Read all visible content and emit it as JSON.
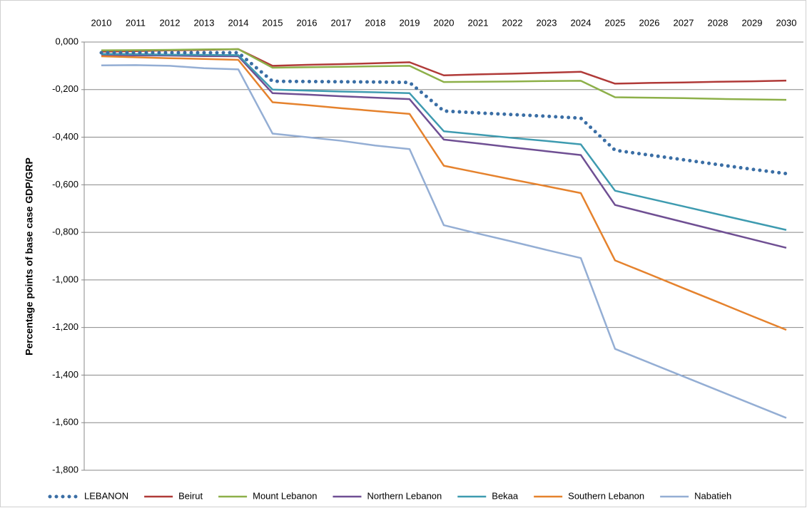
{
  "chart_data": {
    "type": "line",
    "y_label": "Percentage points of base case GDP/GRP",
    "categories": [
      "2010",
      "2011",
      "2012",
      "2013",
      "2014",
      "2015",
      "2016",
      "2017",
      "2018",
      "2019",
      "2020",
      "2021",
      "2022",
      "2023",
      "2024",
      "2025",
      "2026",
      "2027",
      "2028",
      "2029",
      "2030"
    ],
    "ylim": [
      -1.8,
      0
    ],
    "yticks": [
      {
        "value": 0,
        "label": "0,000"
      },
      {
        "value": -0.2,
        "label": "-0,200"
      },
      {
        "value": -0.4,
        "label": "-0,400"
      },
      {
        "value": -0.6,
        "label": "-0,600"
      },
      {
        "value": -0.8,
        "label": "-0,800"
      },
      {
        "value": -1.0,
        "label": "-1,000"
      },
      {
        "value": -1.2,
        "label": "-1,200"
      },
      {
        "value": -1.4,
        "label": "-1,400"
      },
      {
        "value": -1.6,
        "label": "-1,600"
      },
      {
        "value": -1.8,
        "label": "-1,800"
      }
    ],
    "grid": true,
    "legend": "bottom",
    "series": [
      {
        "name": "LEBANON",
        "color": "#3a6ea5",
        "line_style": "dotted",
        "values": [
          -0.045,
          -0.045,
          -0.045,
          -0.045,
          -0.045,
          -0.165,
          -0.166,
          -0.167,
          -0.168,
          -0.17,
          -0.29,
          -0.298,
          -0.305,
          -0.312,
          -0.32,
          -0.455,
          -0.475,
          -0.495,
          -0.515,
          -0.535,
          -0.553
        ]
      },
      {
        "name": "Beirut",
        "color": "#b03a38",
        "line_style": "solid",
        "values": [
          -0.04,
          -0.038,
          -0.035,
          -0.033,
          -0.03,
          -0.1,
          -0.096,
          -0.093,
          -0.089,
          -0.085,
          -0.14,
          -0.136,
          -0.133,
          -0.129,
          -0.125,
          -0.175,
          -0.172,
          -0.17,
          -0.167,
          -0.165,
          -0.162
        ]
      },
      {
        "name": "Mount Lebanon",
        "color": "#8db049",
        "line_style": "solid",
        "values": [
          -0.035,
          -0.034,
          -0.033,
          -0.031,
          -0.03,
          -0.108,
          -0.106,
          -0.104,
          -0.102,
          -0.1,
          -0.168,
          -0.167,
          -0.166,
          -0.164,
          -0.163,
          -0.232,
          -0.234,
          -0.236,
          -0.239,
          -0.241,
          -0.243
        ]
      },
      {
        "name": "Northern Lebanon",
        "color": "#6f4f93",
        "line_style": "solid",
        "values": [
          -0.055,
          -0.056,
          -0.057,
          -0.059,
          -0.06,
          -0.215,
          -0.221,
          -0.228,
          -0.234,
          -0.24,
          -0.41,
          -0.426,
          -0.443,
          -0.459,
          -0.475,
          -0.685,
          -0.721,
          -0.757,
          -0.793,
          -0.829,
          -0.865
        ]
      },
      {
        "name": "Bekaa",
        "color": "#3e9bb0",
        "line_style": "solid",
        "values": [
          -0.05,
          -0.051,
          -0.053,
          -0.054,
          -0.055,
          -0.2,
          -0.204,
          -0.208,
          -0.211,
          -0.215,
          -0.375,
          -0.389,
          -0.403,
          -0.416,
          -0.43,
          -0.625,
          -0.658,
          -0.691,
          -0.724,
          -0.757,
          -0.79
        ]
      },
      {
        "name": "Southern Lebanon",
        "color": "#e5822d",
        "line_style": "solid",
        "values": [
          -0.06,
          -0.064,
          -0.068,
          -0.071,
          -0.075,
          -0.253,
          -0.265,
          -0.278,
          -0.29,
          -0.302,
          -0.52,
          -0.549,
          -0.578,
          -0.606,
          -0.635,
          -0.918,
          -0.976,
          -1.035,
          -1.093,
          -1.152,
          -1.21
        ]
      },
      {
        "name": "Nabatieh",
        "color": "#94aed4",
        "line_style": "solid",
        "values": [
          -0.098,
          -0.097,
          -0.1,
          -0.11,
          -0.115,
          -0.385,
          -0.4,
          -0.415,
          -0.435,
          -0.45,
          -0.77,
          -0.805,
          -0.839,
          -0.874,
          -0.908,
          -1.29,
          -1.348,
          -1.406,
          -1.464,
          -1.522,
          -1.58
        ]
      }
    ]
  }
}
